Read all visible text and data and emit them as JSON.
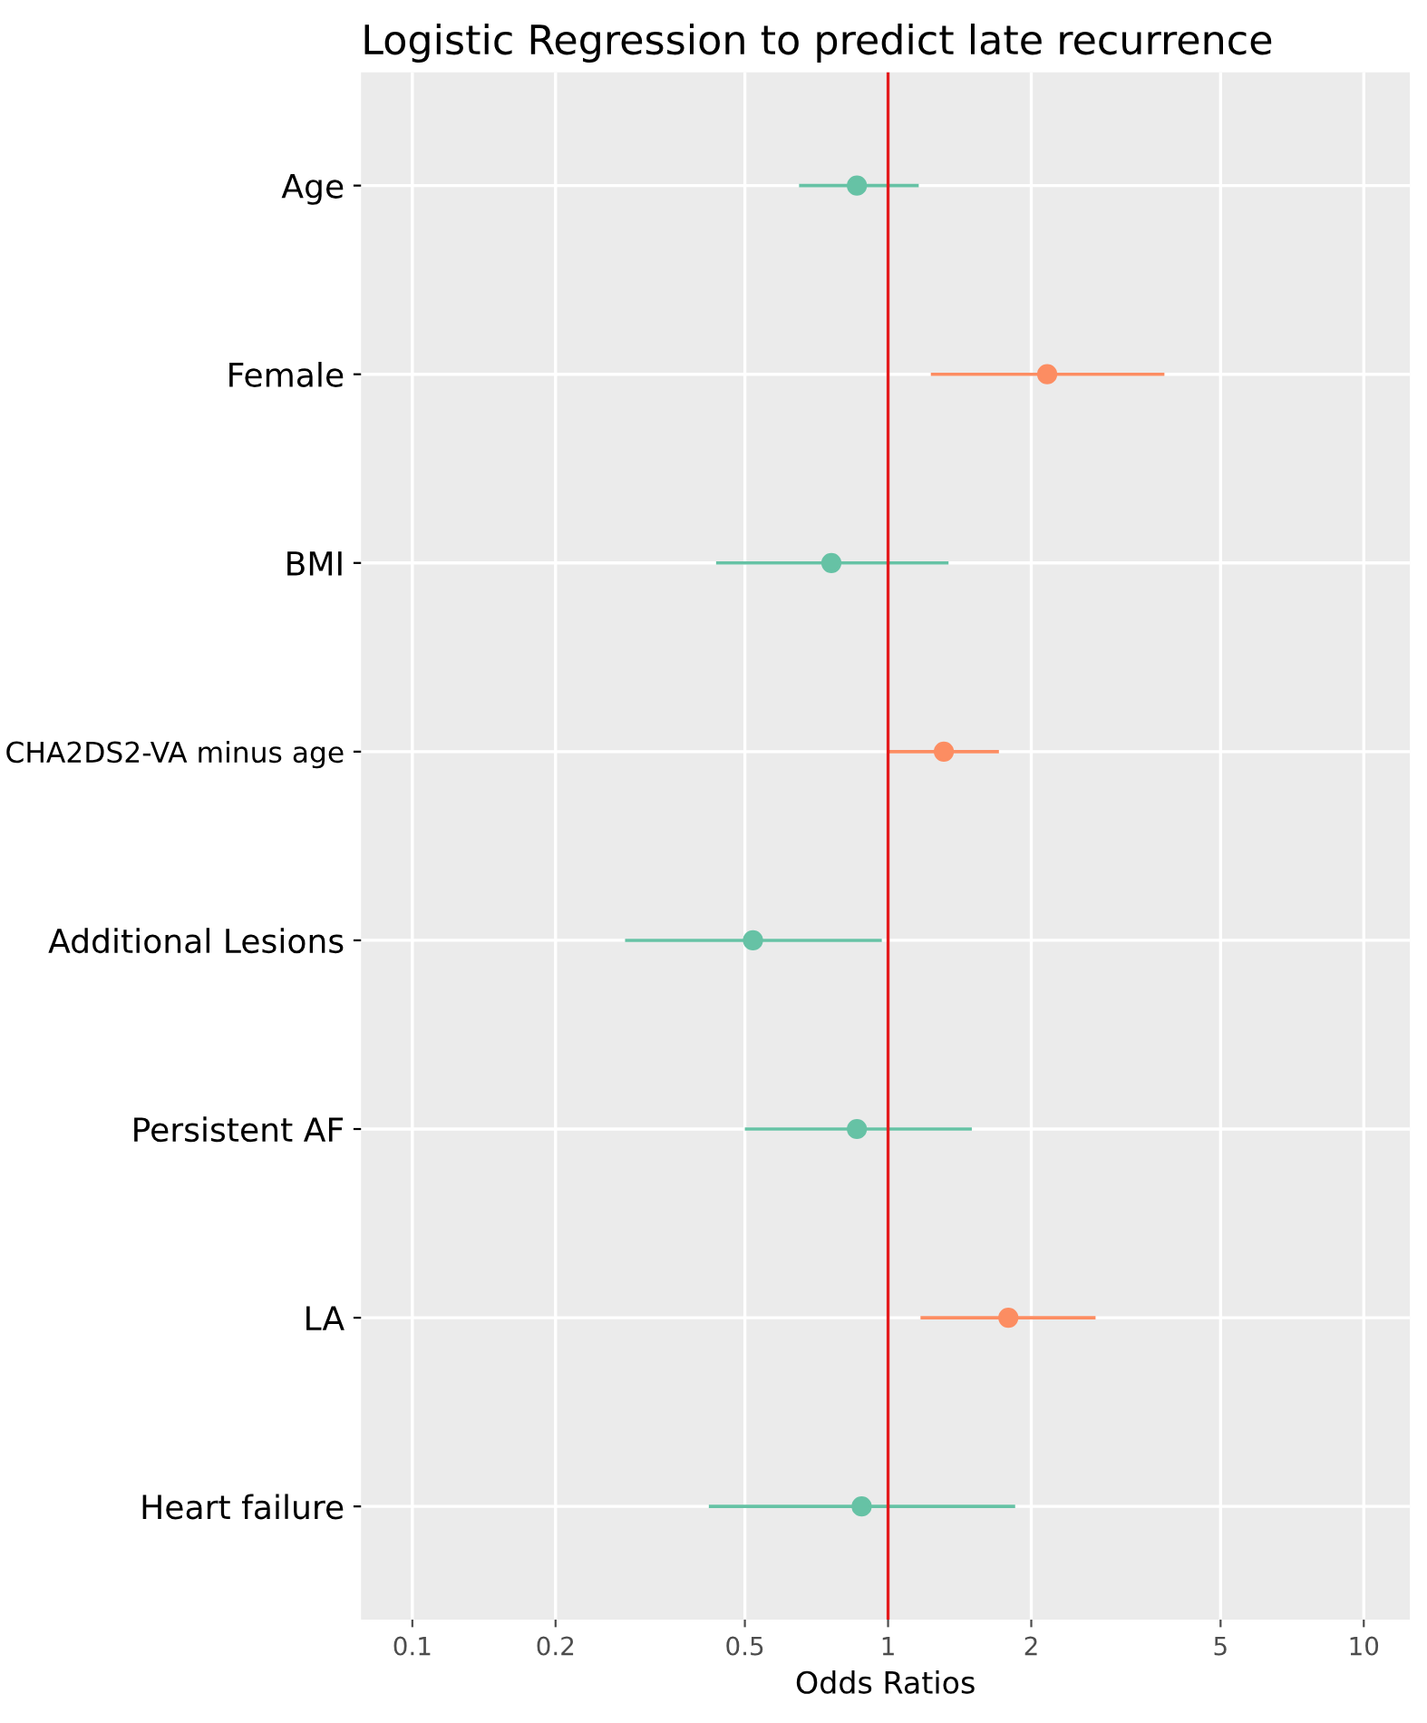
{
  "chart_data": {
    "type": "scatter",
    "orientation": "horizontal",
    "title": "Logistic Regression to predict late recurrence",
    "xlabel": "Odds Ratios",
    "categories": [
      "Age",
      "Female",
      "BMI",
      "CHA2DS2-VA minus age",
      "Additional Lesions",
      "Persistent AF",
      "LA",
      "Heart failure"
    ],
    "values": [
      0.86,
      2.16,
      0.76,
      1.31,
      0.52,
      0.86,
      1.79,
      0.88
    ],
    "errors": [
      [
        0.65,
        1.16
      ],
      [
        1.23,
        3.81
      ],
      [
        0.435,
        1.34
      ],
      [
        1.0,
        1.71
      ],
      [
        0.28,
        0.97
      ],
      [
        0.5,
        1.5
      ],
      [
        1.17,
        2.73
      ],
      [
        0.42,
        1.85
      ]
    ],
    "colors": [
      "#66c2a5",
      "#fc8d62",
      "#66c2a5",
      "#fc8d62",
      "#66c2a5",
      "#66c2a5",
      "#fc8d62",
      "#66c2a5"
    ],
    "log": "x",
    "xlim": [
      0.078,
      12.5
    ],
    "xticks": [
      0.1,
      0.2,
      0.5,
      1,
      2,
      5,
      10
    ],
    "ref_lines": [
      {
        "axis": "x",
        "value": 1,
        "color": "#e41a1c"
      }
    ],
    "grid": true,
    "marker": "circle",
    "legend": false
  }
}
